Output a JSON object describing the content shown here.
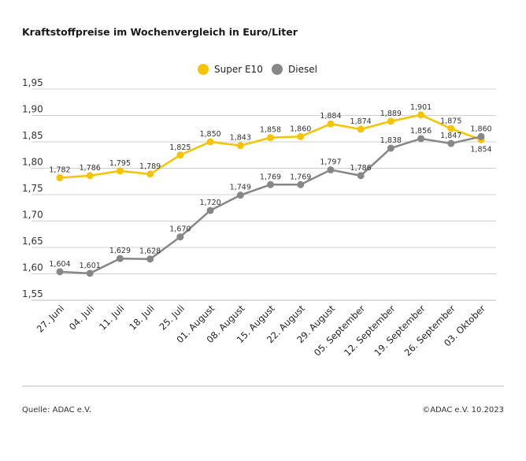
{
  "chart_data": {
    "type": "line",
    "title": "Kraftstoffpreise im Wochenvergleich in Euro/Liter",
    "categories": [
      "27. Juni",
      "04. Juli",
      "11. Juli",
      "18. Juli",
      "25. Juli",
      "01. August",
      "08. August",
      "15. August",
      "22. August",
      "29. August",
      "05. September",
      "12. September",
      "19. September",
      "26. September",
      "03. Oktober"
    ],
    "series": [
      {
        "name": "Super E10",
        "color": "#f5c400",
        "values": [
          1.782,
          1.786,
          1.795,
          1.789,
          1.825,
          1.85,
          1.843,
          1.858,
          1.86,
          1.884,
          1.874,
          1.889,
          1.901,
          1.875,
          1.854
        ]
      },
      {
        "name": "Diesel",
        "color": "#878787",
        "values": [
          1.604,
          1.601,
          1.629,
          1.628,
          1.67,
          1.72,
          1.749,
          1.769,
          1.769,
          1.797,
          1.786,
          1.838,
          1.856,
          1.847,
          1.86
        ]
      }
    ],
    "yticks": [
      "1,95",
      "1,90",
      "1,85",
      "1,80",
      "1,75",
      "1,70",
      "1,65",
      "1,60",
      "1,55"
    ],
    "ylim": [
      1.55,
      1.95
    ],
    "grid": true,
    "legend": "top-center",
    "decimal_separator": ","
  },
  "footer": {
    "source": "Quelle: ADAC e.V.",
    "copyright": "©ADAC e.V. 10.2023"
  }
}
